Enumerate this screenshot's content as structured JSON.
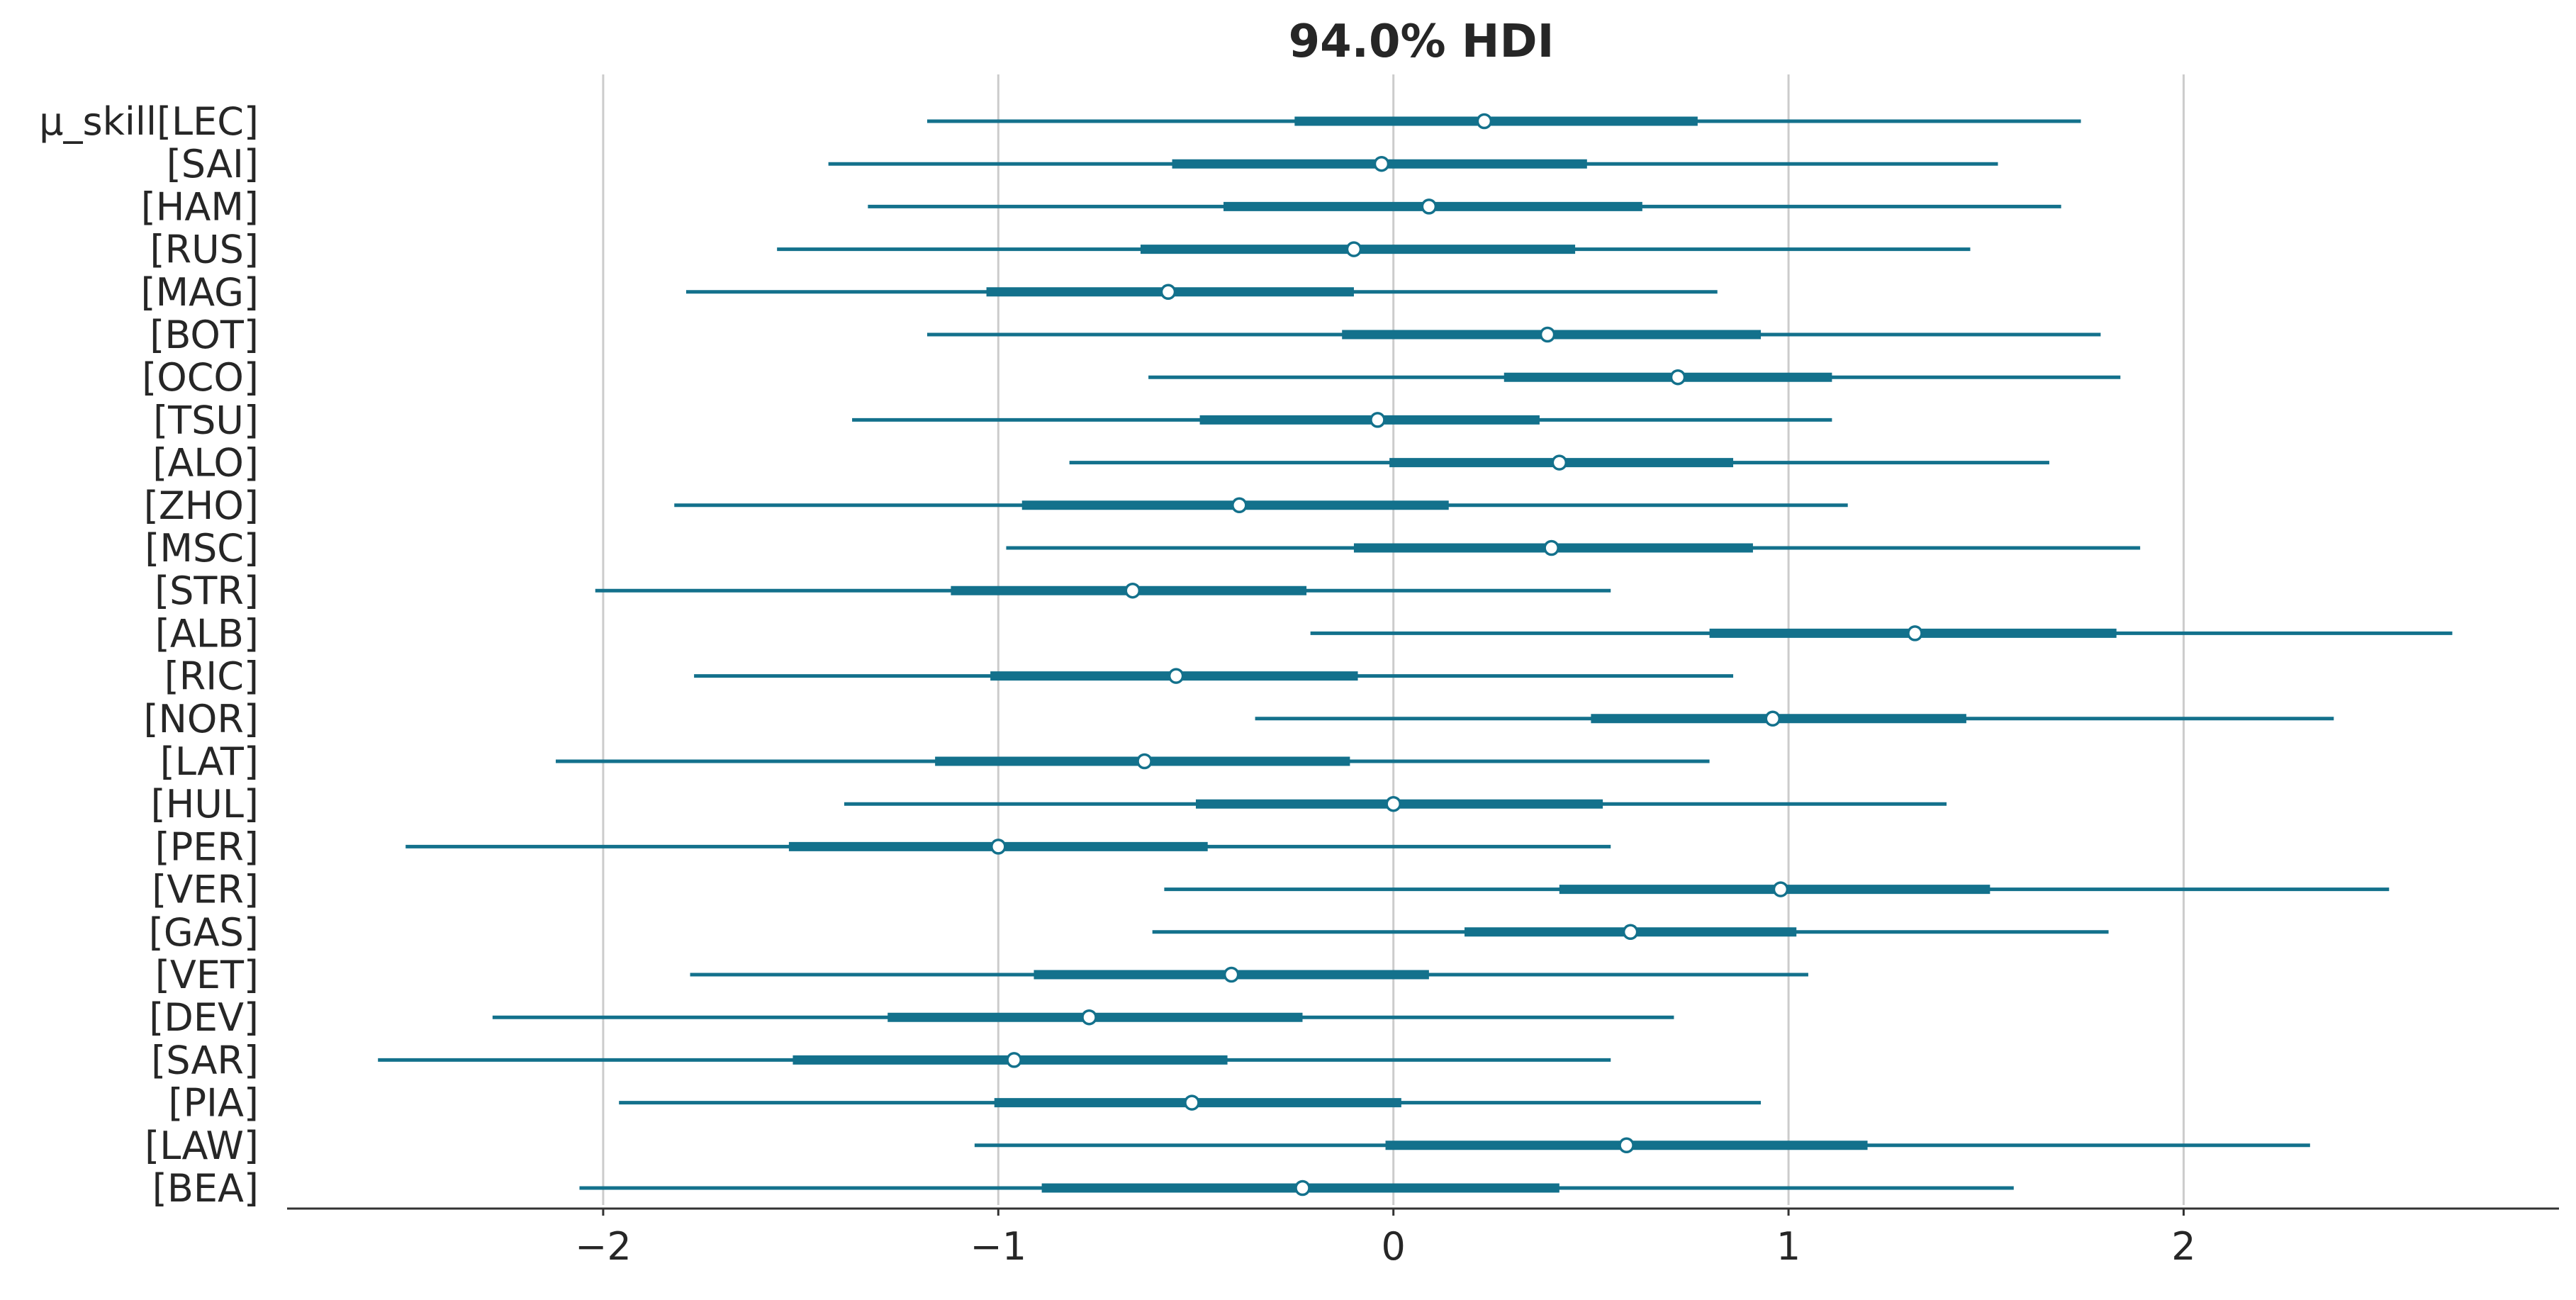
{
  "chart_data": {
    "type": "forest",
    "title": "94.0% HDI",
    "variable": "μ_skill",
    "categories": [
      "LEC",
      "SAI",
      "HAM",
      "RUS",
      "MAG",
      "BOT",
      "OCO",
      "TSU",
      "ALO",
      "ZHO",
      "MSC",
      "STR",
      "ALB",
      "RIC",
      "NOR",
      "LAT",
      "HUL",
      "PER",
      "VER",
      "GAS",
      "VET",
      "DEV",
      "SAR",
      "PIA",
      "LAW",
      "BEA"
    ],
    "row_labels": [
      "μ_skill[LEC]",
      "[SAI]",
      "[HAM]",
      "[RUS]",
      "[MAG]",
      "[BOT]",
      "[OCO]",
      "[TSU]",
      "[ALO]",
      "[ZHO]",
      "[MSC]",
      "[STR]",
      "[ALB]",
      "[RIC]",
      "[NOR]",
      "[LAT]",
      "[HUL]",
      "[PER]",
      "[VER]",
      "[GAS]",
      "[VET]",
      "[DEV]",
      "[SAR]",
      "[PIA]",
      "[LAW]",
      "[BEA]"
    ],
    "series": [
      {
        "name": "",
        "hdi_low": [
          -1.18,
          -1.43,
          -1.33,
          -1.56,
          -1.79,
          -1.18,
          -0.62,
          -1.37,
          -0.82,
          -1.82,
          -0.98,
          -2.02,
          -0.21,
          -1.77,
          -0.35,
          -2.12,
          -1.39,
          -2.5,
          -0.58,
          -0.61,
          -1.78,
          -2.28,
          -2.57,
          -1.96,
          -1.06,
          -2.06
        ],
        "iqr_low": [
          -0.25,
          -0.56,
          -0.43,
          -0.64,
          -1.03,
          -0.13,
          0.28,
          -0.49,
          -0.01,
          -0.94,
          -0.1,
          -1.12,
          0.8,
          -1.02,
          0.5,
          -1.16,
          -0.5,
          -1.53,
          0.42,
          0.18,
          -0.91,
          -1.28,
          -1.52,
          -1.01,
          -0.02,
          -0.89
        ],
        "median": [
          0.23,
          -0.03,
          0.09,
          -0.1,
          -0.57,
          0.39,
          0.72,
          -0.04,
          0.42,
          -0.39,
          0.4,
          -0.66,
          1.32,
          -0.55,
          0.96,
          -0.63,
          0.0,
          -1.0,
          0.98,
          0.6,
          -0.41,
          -0.77,
          -0.96,
          -0.51,
          0.59,
          -0.23
        ],
        "iqr_high": [
          0.77,
          0.49,
          0.63,
          0.46,
          -0.1,
          0.93,
          1.11,
          0.37,
          0.86,
          0.14,
          0.91,
          -0.22,
          1.83,
          -0.09,
          1.45,
          -0.11,
          0.53,
          -0.47,
          1.51,
          1.02,
          0.09,
          -0.23,
          -0.42,
          0.02,
          1.2,
          0.42
        ],
        "hdi_high": [
          1.74,
          1.53,
          1.69,
          1.46,
          0.82,
          1.79,
          1.84,
          1.11,
          1.66,
          1.15,
          1.89,
          0.55,
          2.68,
          0.86,
          2.38,
          0.8,
          1.4,
          0.55,
          2.52,
          1.81,
          1.05,
          0.71,
          0.55,
          0.93,
          2.32,
          1.57
        ]
      }
    ],
    "xlim": [
      -2.8,
      2.95
    ],
    "xticks": [
      -2,
      -1,
      0,
      1,
      2
    ],
    "xtick_labels": [
      "−2",
      "−1",
      "0",
      "1",
      "2"
    ],
    "grid": "vertical",
    "xlabel": "",
    "ylabel": ""
  },
  "colors": {
    "series": "#13718c",
    "grid": "#cccccc",
    "text": "#262626",
    "axis": "#333333"
  }
}
